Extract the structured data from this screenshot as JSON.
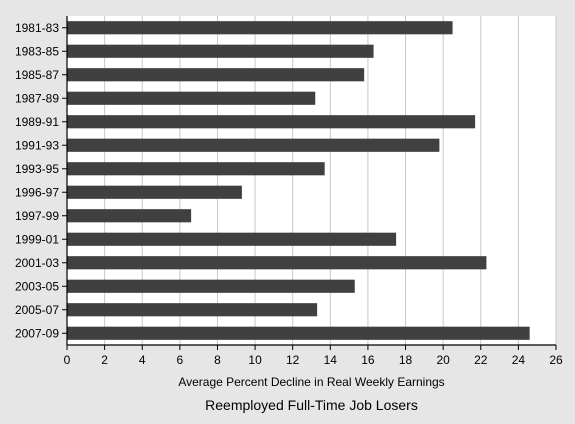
{
  "chart_data": {
    "type": "bar",
    "orientation": "horizontal",
    "categories": [
      "1981-83",
      "1983-85",
      "1985-87",
      "1987-89",
      "1989-91",
      "1991-93",
      "1993-95",
      "1996-97",
      "1997-99",
      "1999-01",
      "2001-03",
      "2003-05",
      "2005-07",
      "2007-09"
    ],
    "values": [
      20.5,
      16.3,
      15.8,
      13.2,
      21.7,
      19.8,
      13.7,
      9.3,
      6.6,
      17.5,
      22.3,
      15.3,
      13.3,
      24.6
    ],
    "xlabel": "Average Percent Decline in Real Weekly Earnings",
    "caption": "Reemployed Full-Time Job Losers",
    "xlim": [
      0,
      26
    ],
    "xticks": [
      0,
      2,
      4,
      6,
      8,
      10,
      12,
      14,
      16,
      18,
      20,
      22,
      24,
      26
    ],
    "grid": "vertical",
    "colors": {
      "bar": "#404040",
      "plot_background": "#ffffff",
      "page_background": "#e6e6e6",
      "grid": "#c8c8c8",
      "axis": "#000000"
    }
  }
}
